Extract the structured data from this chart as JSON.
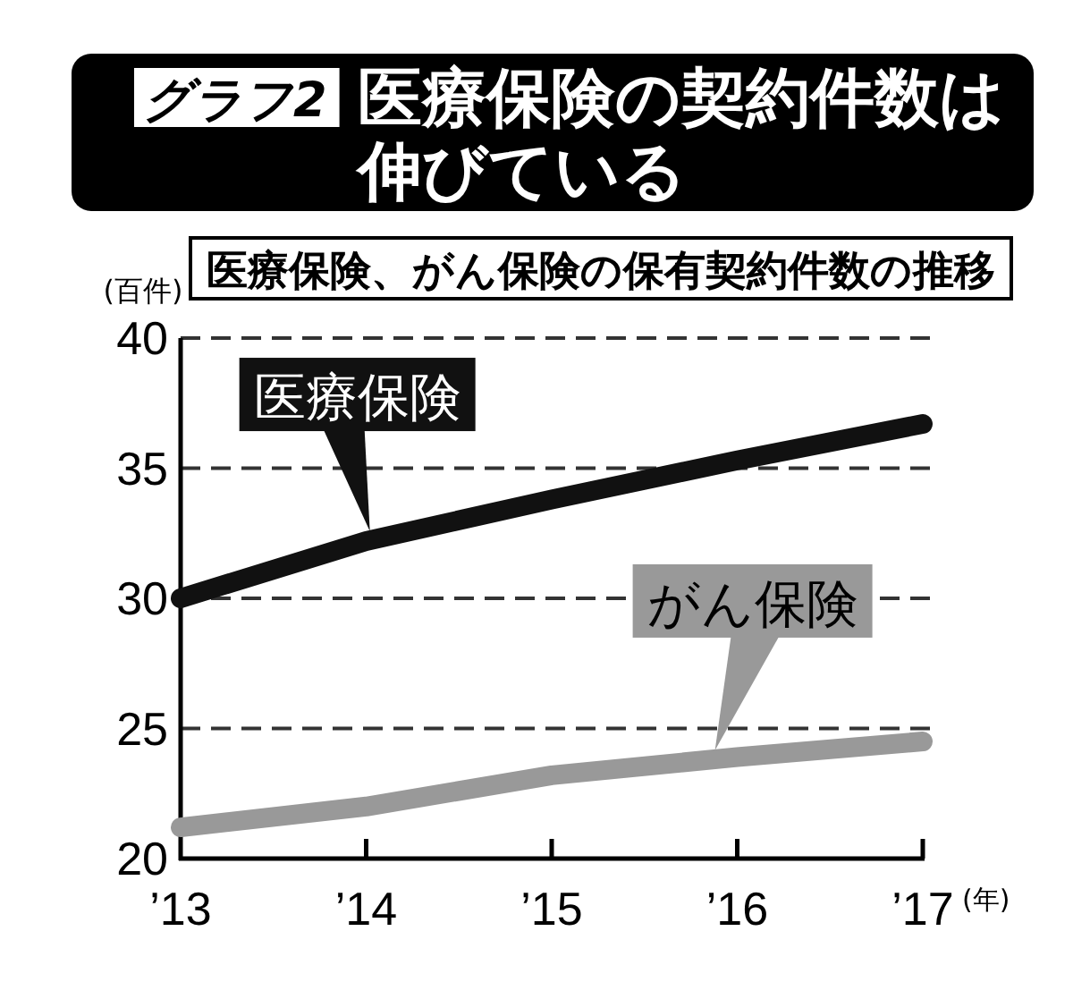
{
  "chart_data": {
    "type": "line",
    "title": "医療保険の契約件数は伸びている",
    "annotations": [
      "グラフ2"
    ],
    "subtitle": "医療保険、がん保険の保有契約件数の推移",
    "ylabel": "(百件)",
    "xlabel": "(年)",
    "categories": [
      "’13",
      "’14",
      "’15",
      "’16",
      "’17"
    ],
    "ylim": [
      20,
      40
    ],
    "yticks": [
      20,
      25,
      30,
      35,
      40
    ],
    "grid": "y",
    "line_style": "solid",
    "marker": "none",
    "series": [
      {
        "name": "医療保険",
        "color": "#111111",
        "values": [
          30.0,
          32.2,
          33.8,
          35.3,
          36.7
        ]
      },
      {
        "name": "がん保険",
        "color": "#999999",
        "values": [
          21.2,
          22.0,
          23.2,
          23.9,
          24.5
        ]
      }
    ]
  }
}
